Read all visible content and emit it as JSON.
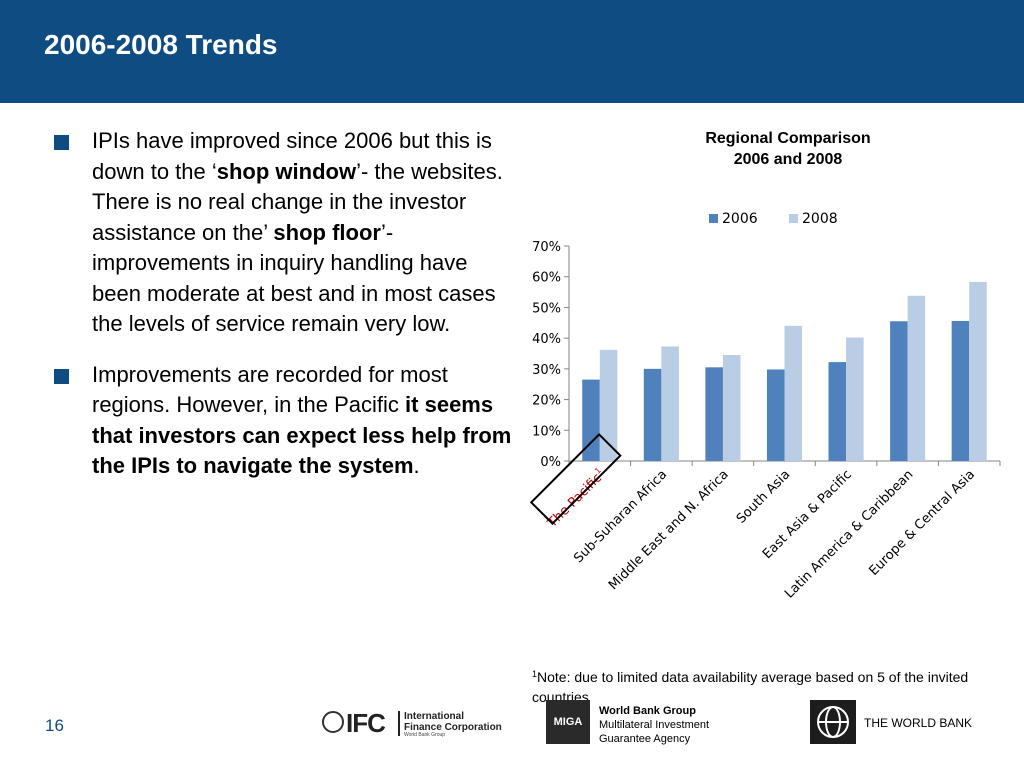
{
  "slide": {
    "title": "2006-2008 Trends",
    "page_number": "16"
  },
  "bullets": [
    {
      "segments": [
        {
          "text": "IPIs have improved since 2006 but this is down to the ‘",
          "bold": false
        },
        {
          "text": "shop window",
          "bold": true
        },
        {
          "text": "’- the websites.  There is no real change in the investor assistance on the’ ",
          "bold": false
        },
        {
          "text": "shop floor",
          "bold": true
        },
        {
          "text": "’- improvements in inquiry handling have been moderate at best and in most cases the levels of service remain very low.",
          "bold": false
        }
      ]
    },
    {
      "segments": [
        {
          "text": "Improvements are recorded for most regions. However, in  the Pacific ",
          "bold": false
        },
        {
          "text": "it seems that investors can expect less help from the IPIs to navigate the system",
          "bold": true
        },
        {
          "text": ".",
          "bold": false
        }
      ]
    }
  ],
  "chart_data": {
    "type": "bar",
    "title_line1": "Regional Comparison",
    "title_line2": "2006 and 2008",
    "categories": [
      "The Pacific",
      "Sub-Suharan Africa",
      "Middle East and N. Africa",
      "South Asia",
      "East Asia & Pacific",
      "Latin America & Caribbean",
      "Europe & Central Asia"
    ],
    "footnote_marker": "1",
    "highlighted_category": "The Pacific",
    "series": [
      {
        "name": "2006",
        "color": "#4f81bd",
        "values": [
          0.265,
          0.3,
          0.305,
          0.298,
          0.322,
          0.455,
          0.456
        ]
      },
      {
        "name": "2008",
        "color": "#b9cde5",
        "values": [
          0.362,
          0.373,
          0.345,
          0.44,
          0.402,
          0.538,
          0.583
        ]
      }
    ],
    "ylim": [
      0,
      0.7
    ],
    "yticks": [
      "0%",
      "10%",
      "20%",
      "30%",
      "40%",
      "50%",
      "60%",
      "70%"
    ],
    "legend_position": "top",
    "grid": false,
    "highlight_color": "#c00000"
  },
  "footnote": {
    "marker": "1",
    "text": "Note: due to limited data availability average based on 5 of the invited countries"
  },
  "logos": {
    "ifc_mark": "IFC",
    "ifc_name_line1": "International",
    "ifc_name_line2": "Finance Corporation",
    "ifc_sub": "World Bank Group",
    "miga_mark": "MIGA",
    "miga_line1": "World Bank Group",
    "miga_line2": "Multilateral Investment",
    "miga_line3": "Guarantee Agency",
    "world_bank": "THE WORLD BANK"
  },
  "colors": {
    "header_bg": "#0f4c81",
    "bullet_marker": "#0f4c81"
  }
}
